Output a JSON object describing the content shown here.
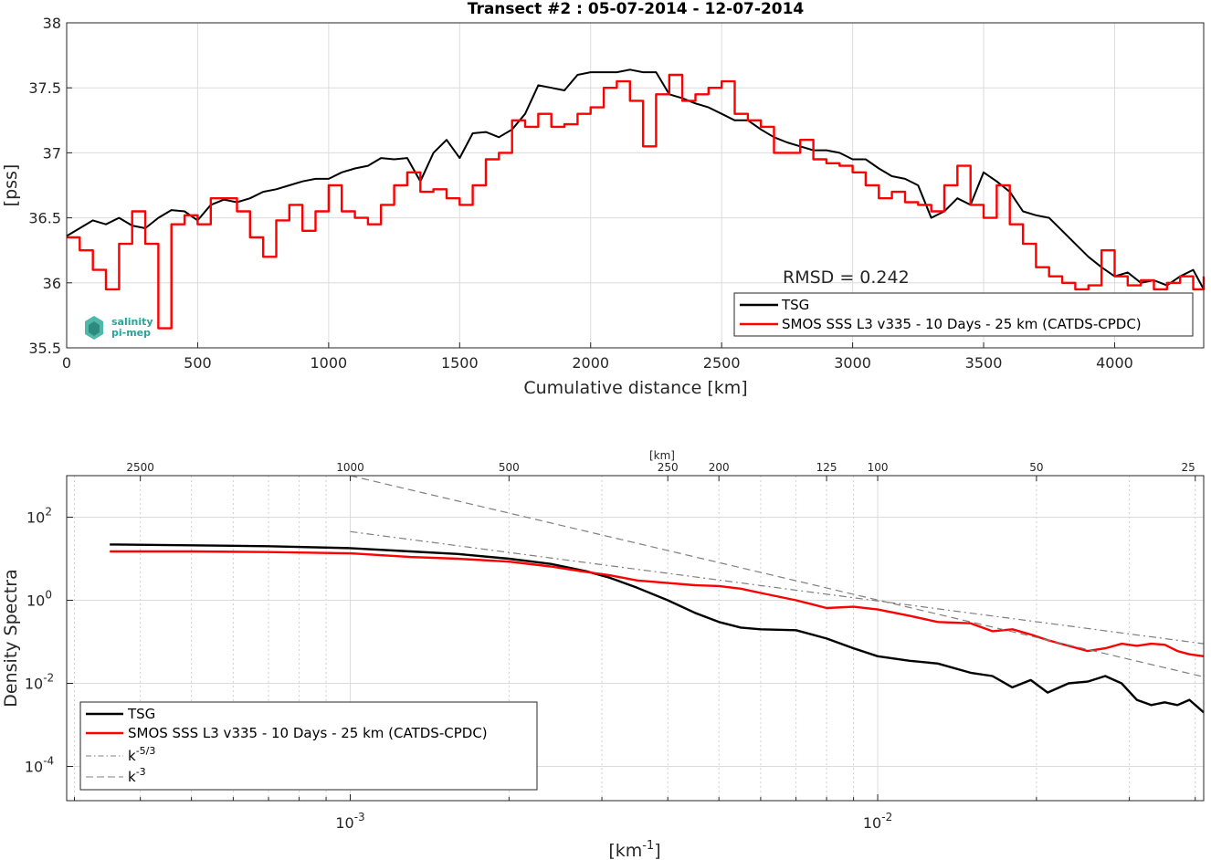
{
  "chart_data": [
    {
      "type": "line",
      "title": "Transect #2 : 05-07-2014 - 12-07-2014",
      "xlabel": "Cumulative distance [km]",
      "ylabel": "[pss]",
      "xlim": [
        0,
        4340
      ],
      "ylim": [
        35.5,
        38
      ],
      "xticks": [
        0,
        500,
        1000,
        1500,
        2000,
        2500,
        3000,
        3500,
        4000
      ],
      "yticks": [
        35.5,
        36,
        36.5,
        37,
        37.5,
        38
      ],
      "grid": true,
      "annotation": "RMSD = 0.242",
      "logo_text": "salinity pi-mep",
      "legend_position": "bottom-right",
      "series": [
        {
          "name": "TSG",
          "color": "#000000",
          "x": [
            0,
            50,
            100,
            150,
            200,
            250,
            300,
            350,
            400,
            450,
            500,
            550,
            600,
            650,
            700,
            750,
            800,
            850,
            900,
            950,
            1000,
            1050,
            1100,
            1150,
            1200,
            1250,
            1300,
            1350,
            1400,
            1450,
            1500,
            1550,
            1600,
            1650,
            1700,
            1750,
            1800,
            1850,
            1900,
            1950,
            2000,
            2050,
            2100,
            2150,
            2200,
            2250,
            2300,
            2350,
            2400,
            2450,
            2500,
            2550,
            2600,
            2650,
            2700,
            2750,
            2800,
            2850,
            2900,
            2950,
            3000,
            3050,
            3100,
            3150,
            3200,
            3250,
            3300,
            3350,
            3400,
            3450,
            3500,
            3550,
            3600,
            3650,
            3700,
            3750,
            3800,
            3850,
            3900,
            3950,
            4000,
            4050,
            4100,
            4150,
            4200,
            4250,
            4300,
            4340
          ],
          "y": [
            36.36,
            36.42,
            36.48,
            36.45,
            36.5,
            36.44,
            36.42,
            36.5,
            36.56,
            36.55,
            36.48,
            36.6,
            36.64,
            36.62,
            36.65,
            36.7,
            36.72,
            36.75,
            36.78,
            36.8,
            36.8,
            36.85,
            36.88,
            36.9,
            36.96,
            36.95,
            36.96,
            36.78,
            37.0,
            37.1,
            36.96,
            37.15,
            37.16,
            37.12,
            37.18,
            37.3,
            37.52,
            37.5,
            37.48,
            37.6,
            37.62,
            37.62,
            37.62,
            37.64,
            37.62,
            37.62,
            37.45,
            37.42,
            37.38,
            37.35,
            37.3,
            37.25,
            37.25,
            37.18,
            37.12,
            37.08,
            37.05,
            37.02,
            37.02,
            37.0,
            36.95,
            36.95,
            36.88,
            36.82,
            36.8,
            36.75,
            36.5,
            36.55,
            36.65,
            36.6,
            36.85,
            36.78,
            36.7,
            36.55,
            36.52,
            36.5,
            36.4,
            36.3,
            36.2,
            36.12,
            36.05,
            36.08,
            36.0,
            36.02,
            35.98,
            36.05,
            36.1,
            35.95
          ]
        },
        {
          "name": "SMOS SSS L3 v335 - 10 Days - 25 km (CATDS-CPDC)",
          "color": "#ff0000",
          "x": [
            0,
            50,
            100,
            150,
            200,
            250,
            300,
            350,
            400,
            450,
            500,
            550,
            600,
            650,
            700,
            750,
            800,
            850,
            900,
            950,
            1000,
            1050,
            1100,
            1150,
            1200,
            1250,
            1300,
            1350,
            1400,
            1450,
            1500,
            1550,
            1600,
            1650,
            1700,
            1750,
            1800,
            1850,
            1900,
            1950,
            2000,
            2050,
            2100,
            2150,
            2200,
            2250,
            2300,
            2350,
            2400,
            2450,
            2500,
            2550,
            2600,
            2650,
            2700,
            2750,
            2800,
            2850,
            2900,
            2950,
            3000,
            3050,
            3100,
            3150,
            3200,
            3250,
            3300,
            3350,
            3400,
            3450,
            3500,
            3550,
            3600,
            3650,
            3700,
            3750,
            3800,
            3850,
            3900,
            3950,
            4000,
            4050,
            4100,
            4150,
            4200,
            4250,
            4300,
            4340
          ],
          "y": [
            36.35,
            36.25,
            36.1,
            35.95,
            36.3,
            36.55,
            36.3,
            35.65,
            36.45,
            36.52,
            36.45,
            36.65,
            36.65,
            36.55,
            36.35,
            36.2,
            36.48,
            36.6,
            36.4,
            36.55,
            36.75,
            36.55,
            36.5,
            36.45,
            36.6,
            36.75,
            36.85,
            36.7,
            36.72,
            36.65,
            36.6,
            36.75,
            36.95,
            37.0,
            37.25,
            37.2,
            37.3,
            37.2,
            37.22,
            37.3,
            37.35,
            37.5,
            37.55,
            37.4,
            37.05,
            37.45,
            37.6,
            37.4,
            37.45,
            37.5,
            37.55,
            37.3,
            37.25,
            37.2,
            37.0,
            37.0,
            37.1,
            36.95,
            36.92,
            36.9,
            36.85,
            36.75,
            36.65,
            36.7,
            36.62,
            36.6,
            36.55,
            36.75,
            36.9,
            36.6,
            36.5,
            36.75,
            36.45,
            36.3,
            36.12,
            36.05,
            36.0,
            35.95,
            35.98,
            36.25,
            36.05,
            35.98,
            36.02,
            35.95,
            36.0,
            36.05,
            35.95,
            36.05
          ]
        }
      ]
    },
    {
      "type": "line",
      "xlabel_base": "[km",
      "xlabel_exp": "-1",
      "xlabel_end": "]",
      "ylabel": "Density Spectra",
      "xscale": "log",
      "yscale": "log",
      "xlim": [
        0.00029,
        0.0415
      ],
      "ylim": [
        1.5e-05,
        1000
      ],
      "xticks": [
        {
          "value": 0.001,
          "base": "10",
          "exp": "-3"
        },
        {
          "value": 0.01,
          "base": "10",
          "exp": "-2"
        }
      ],
      "yticks": [
        {
          "value": 100,
          "base": "10",
          "exp": "2"
        },
        {
          "value": 1,
          "base": "10",
          "exp": "0"
        },
        {
          "value": 0.01,
          "base": "10",
          "exp": "-2"
        },
        {
          "value": 0.0001,
          "base": "10",
          "exp": "-4"
        }
      ],
      "top_axis_label": "[km]",
      "top_ticks": [
        "2500",
        "1000",
        "500",
        "250",
        "200",
        "125",
        "100",
        "50",
        "25"
      ],
      "top_tick_values": [
        2500,
        1000,
        500,
        250,
        200,
        125,
        100,
        50,
        25
      ],
      "grid": true,
      "legend_position": "bottom-left",
      "series": [
        {
          "name": "TSG",
          "color": "#000000",
          "x": [
            0.00035,
            0.0005,
            0.0007,
            0.001,
            0.0013,
            0.0016,
            0.002,
            0.0024,
            0.0028,
            0.0031,
            0.0035,
            0.004,
            0.0045,
            0.005,
            0.0055,
            0.006,
            0.007,
            0.008,
            0.009,
            0.01,
            0.0115,
            0.013,
            0.015,
            0.0165,
            0.018,
            0.0195,
            0.021,
            0.023,
            0.025,
            0.027,
            0.029,
            0.031,
            0.033,
            0.035,
            0.037,
            0.039,
            0.0415
          ],
          "y": [
            22,
            21,
            20,
            18,
            15,
            13,
            10,
            7.5,
            5.0,
            3.5,
            2.0,
            1.0,
            0.5,
            0.3,
            0.22,
            0.2,
            0.19,
            0.12,
            0.07,
            0.045,
            0.035,
            0.03,
            0.018,
            0.015,
            0.008,
            0.012,
            0.006,
            0.01,
            0.011,
            0.015,
            0.01,
            0.004,
            0.003,
            0.0035,
            0.003,
            0.004,
            0.002
          ]
        },
        {
          "name": "SMOS SSS L3 v335 - 10 Days - 25 km (CATDS-CPDC)",
          "color": "#ff0000",
          "x": [
            0.00035,
            0.0005,
            0.0007,
            0.001,
            0.0013,
            0.0016,
            0.002,
            0.0024,
            0.0028,
            0.0031,
            0.0035,
            0.004,
            0.0045,
            0.005,
            0.0055,
            0.006,
            0.007,
            0.008,
            0.009,
            0.01,
            0.0115,
            0.013,
            0.015,
            0.0165,
            0.018,
            0.0195,
            0.021,
            0.023,
            0.025,
            0.027,
            0.029,
            0.031,
            0.033,
            0.035,
            0.037,
            0.039,
            0.0415
          ],
          "y": [
            15,
            15,
            14.5,
            13.5,
            11,
            10,
            8.5,
            6.5,
            4.8,
            4.0,
            3.0,
            2.6,
            2.3,
            2.2,
            1.9,
            1.5,
            1.0,
            0.65,
            0.7,
            0.6,
            0.42,
            0.3,
            0.28,
            0.18,
            0.2,
            0.15,
            0.11,
            0.08,
            0.06,
            0.07,
            0.09,
            0.08,
            0.09,
            0.085,
            0.06,
            0.05,
            0.045
          ]
        },
        {
          "name": "k",
          "name_exp": "-5/3",
          "color": "#7f7f7f",
          "dash": "dashdot",
          "x": [
            0.001,
            0.0415
          ],
          "y": [
            45,
            0.09
          ]
        },
        {
          "name": "k",
          "name_exp": "-3",
          "color": "#7f7f7f",
          "dash": "dashed",
          "x": [
            0.001,
            0.0415
          ],
          "y": [
            1000,
            0.0143
          ]
        }
      ]
    }
  ]
}
